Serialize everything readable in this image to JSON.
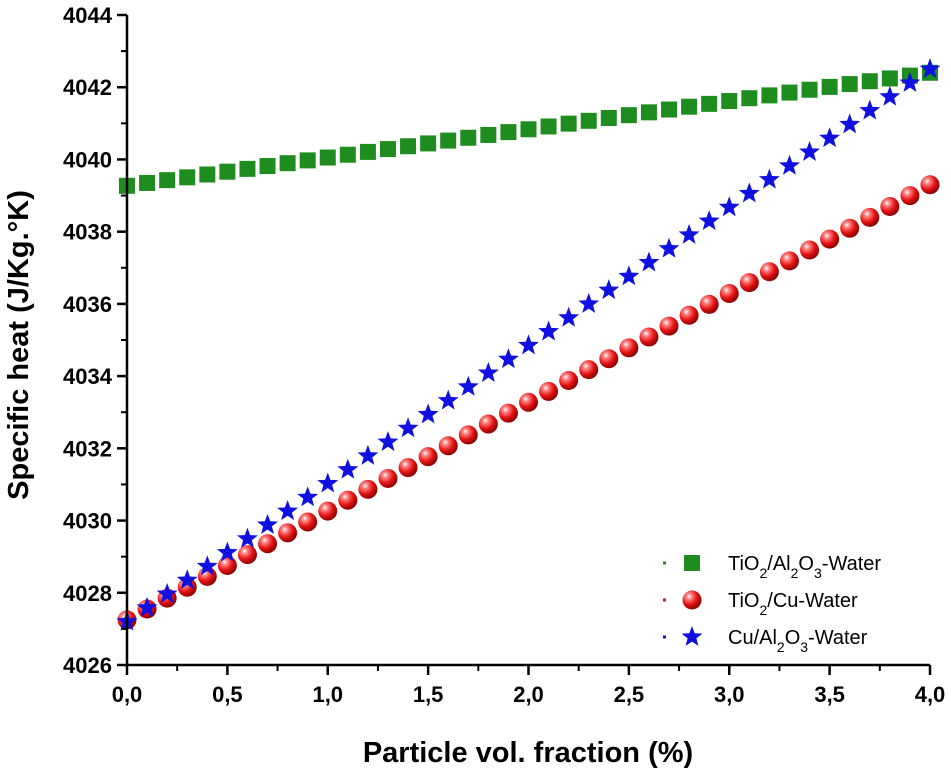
{
  "chart_data": {
    "type": "scatter",
    "xlabel": "Particle vol. fraction (%)",
    "ylabel": "Specific heat (J/Kg.°K)",
    "xlim": [
      0,
      4
    ],
    "ylim": [
      4026,
      4044
    ],
    "x_ticks": [
      "0,0",
      "0,5",
      "1,0",
      "1,5",
      "2,0",
      "2,5",
      "3,0",
      "3,5",
      "4,0"
    ],
    "y_ticks": [
      "4026",
      "4028",
      "4030",
      "4032",
      "4034",
      "4036",
      "4038",
      "4040",
      "4042",
      "4044"
    ],
    "x_step": 0.1,
    "x_count": 41,
    "series": [
      {
        "name": "TiO2/Al2O3-Water",
        "legend_parts": [
          "TiO",
          "2",
          "/Al",
          "2",
          "O",
          "3",
          "-Water"
        ],
        "marker": "square",
        "color": "#1e8c1e",
        "y_start": 4039.27,
        "y_end": 4042.4
      },
      {
        "name": "TiO2/Cu-Water",
        "legend_parts": [
          "TiO",
          "2",
          "/Cu-Water"
        ],
        "marker": "sphere",
        "color": "#e01010",
        "y_start": 4027.25,
        "y_end": 4039.3
      },
      {
        "name": "Cu/Al2O3-Water",
        "legend_parts": [
          "Cu/Al",
          "2",
          "O",
          "3",
          "-Water"
        ],
        "marker": "star",
        "color": "#1010e0",
        "y_start": 4027.2,
        "y_end": 4042.5
      }
    ]
  }
}
